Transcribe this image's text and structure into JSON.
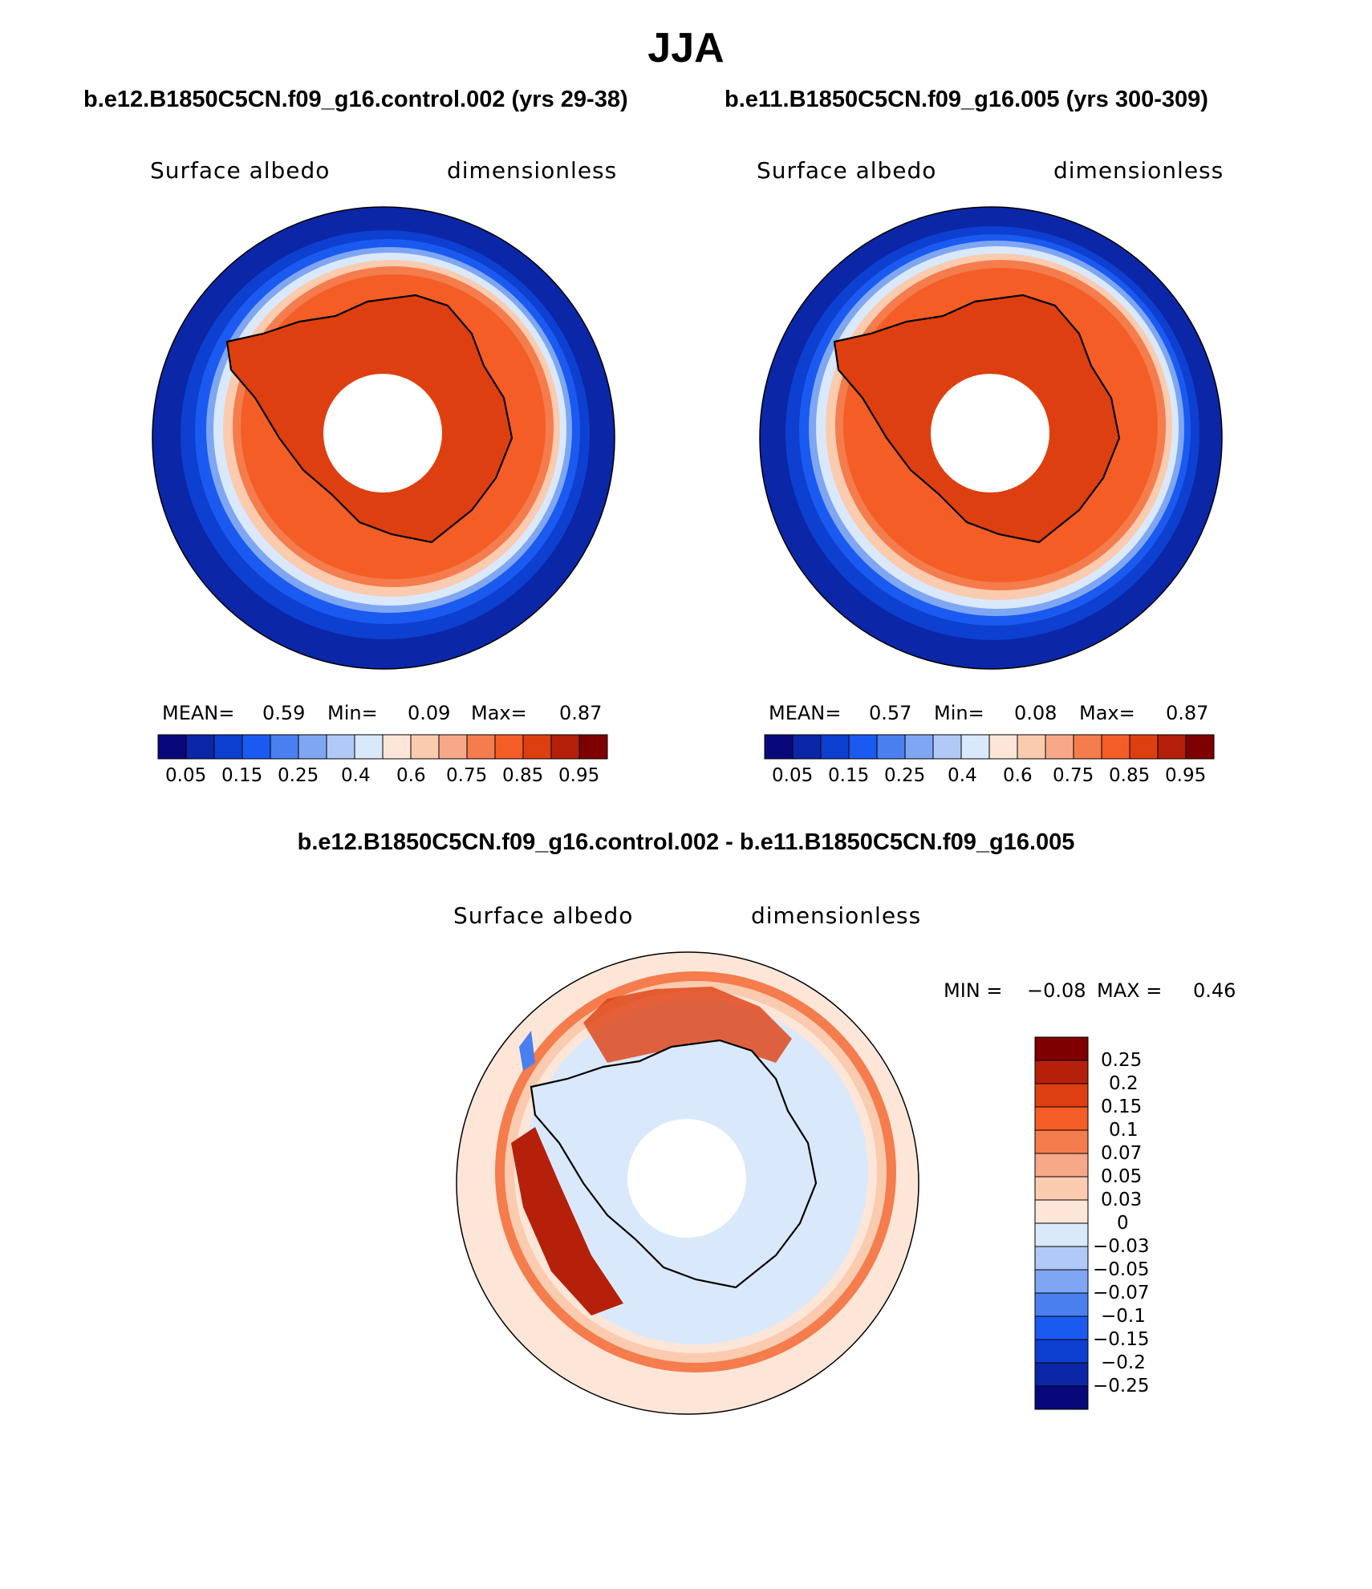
{
  "figure": {
    "season": "JJA"
  },
  "panels": [
    {
      "case_title": "b.e12.B1850C5CN.f09_g16.control.002 (yrs 29-38)",
      "variable": "Surface albedo",
      "units": "dimensionless",
      "mean_label": "MEAN=",
      "mean_value": "0.59",
      "min_label": "Min=",
      "min_value": "0.09",
      "max_label": "Max=",
      "max_value": "0.87"
    },
    {
      "case_title": "b.e11.B1850C5CN.f09_g16.005 (yrs 300-309)",
      "variable": "Surface albedo",
      "units": "dimensionless",
      "mean_label": "MEAN=",
      "mean_value": "0.57",
      "min_label": "Min=",
      "min_value": "0.08",
      "max_label": "Max=",
      "max_value": "0.87"
    }
  ],
  "diff_panel": {
    "title": "b.e12.B1850C5CN.f09_g16.control.002 - b.e11.B1850C5CN.f09_g16.005",
    "variable": "Surface albedo",
    "units": "dimensionless",
    "min_label": "MIN =",
    "min_value": "−0.08",
    "max_label": "MAX =",
    "max_value": "0.46"
  },
  "colorbars": {
    "abs": {
      "colors": [
        "#08087a",
        "#0b26a6",
        "#0d3fd0",
        "#1a5af0",
        "#4a7fef",
        "#7fa6f2",
        "#b0c9f7",
        "#d9e9fb",
        "#fde6d8",
        "#fbcbb0",
        "#f7a888",
        "#f57c4c",
        "#f45e26",
        "#de3f10",
        "#b5200a",
        "#7e0000"
      ],
      "tick_labels": [
        "0.05",
        "0.15",
        "0.25",
        "0.4",
        "0.6",
        "0.75",
        "0.85",
        "0.95"
      ]
    },
    "diff": {
      "colors_top_to_bottom": [
        "#7e0000",
        "#b5200a",
        "#de3f10",
        "#f45e26",
        "#f57c4c",
        "#f7a888",
        "#fbcbb0",
        "#fde6d8",
        "#d9e9fb",
        "#b0c9f7",
        "#7fa6f2",
        "#4a7fef",
        "#1a5af0",
        "#0d3fd0",
        "#0b26a6",
        "#08087a"
      ],
      "tick_labels": [
        "0.25",
        "0.2",
        "0.15",
        "0.1",
        "0.07",
        "0.05",
        "0.03",
        "0",
        "−0.03",
        "−0.05",
        "−0.07",
        "−0.1",
        "−0.15",
        "−0.2",
        "−0.25"
      ]
    }
  }
}
